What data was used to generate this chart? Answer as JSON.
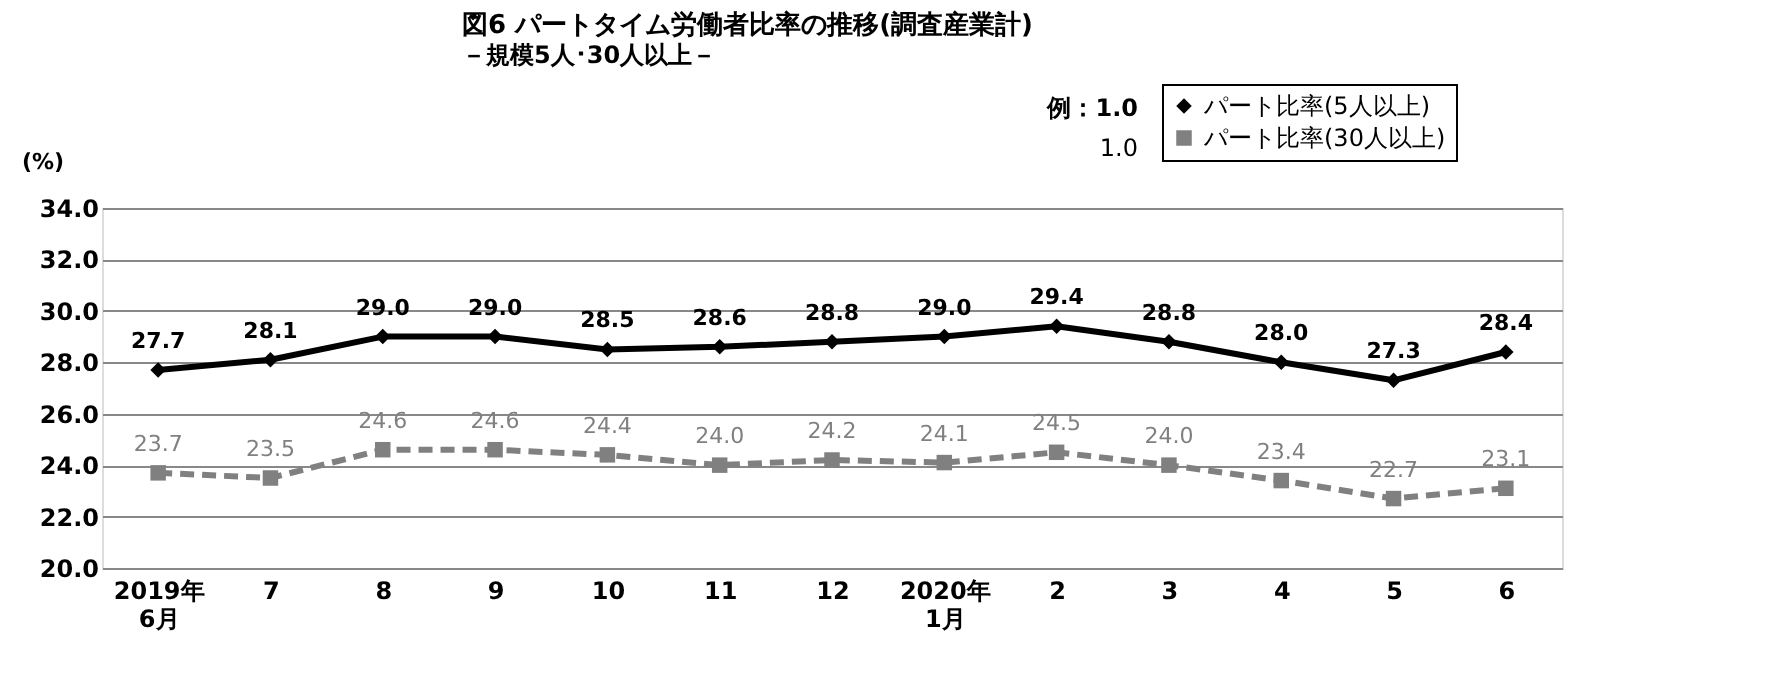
{
  "chart_data": {
    "type": "line",
    "title": "図6  パートタイム労働者比率の推移(調査産業計)",
    "subtitle": "－規模5人･30人以上－",
    "ylabel": "(%)",
    "categories": [
      "2019年\n6月",
      "7",
      "8",
      "9",
      "10",
      "11",
      "12",
      "2020年\n1月",
      "2",
      "3",
      "4",
      "5",
      "6"
    ],
    "series": [
      {
        "name": "パート比率(5人以上)",
        "color": "#000000",
        "marker": "diamond",
        "line_style": "solid",
        "values": [
          27.7,
          28.1,
          29.0,
          29.0,
          28.5,
          28.6,
          28.8,
          29.0,
          29.4,
          28.8,
          28.0,
          27.3,
          28.4
        ],
        "value_labels": [
          "27.7",
          "28.1",
          "29.0",
          "29.0",
          "28.5",
          "28.6",
          "28.8",
          "29.0",
          "29.4",
          "28.8",
          "28.0",
          "27.3",
          "28.4"
        ]
      },
      {
        "name": "パート比率(30人以上)",
        "color": "#808080",
        "marker": "square",
        "line_style": "dashed",
        "values": [
          23.7,
          23.5,
          24.6,
          24.6,
          24.4,
          24.0,
          24.2,
          24.1,
          24.5,
          24.0,
          23.4,
          22.7,
          23.1
        ],
        "value_labels": [
          "23.7",
          "23.5",
          "24.6",
          "24.6",
          "24.4",
          "24.0",
          "24.2",
          "24.1",
          "24.5",
          "24.0",
          "23.4",
          "22.7",
          "23.1"
        ]
      }
    ],
    "ylim": [
      20,
      34
    ],
    "yticks": [
      {
        "value": 20,
        "label": "20.0"
      },
      {
        "value": 22,
        "label": "22.0"
      },
      {
        "value": 24,
        "label": "24.0"
      },
      {
        "value": 26,
        "label": "26.0"
      },
      {
        "value": 28,
        "label": "28.0"
      },
      {
        "value": 30,
        "label": "30.0"
      },
      {
        "value": 32,
        "label": "32.0"
      },
      {
        "value": 34,
        "label": "34.0"
      }
    ],
    "grid": "y",
    "legend": "top right",
    "annotations": [
      "例：1.0",
      "1.0"
    ]
  }
}
